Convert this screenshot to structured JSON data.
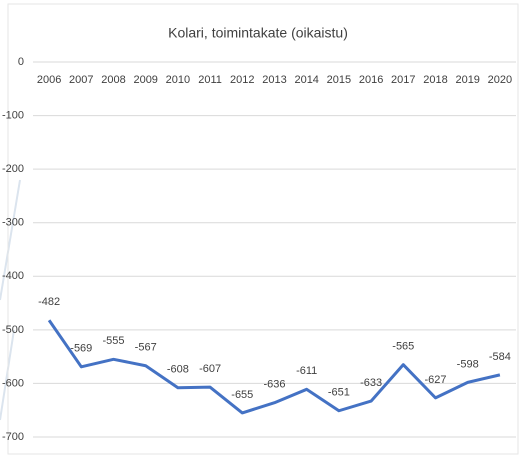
{
  "chart_data": {
    "type": "line",
    "title": "Kolari, toimintakate (oikaistu)",
    "categories": [
      "2006",
      "2007",
      "2008",
      "2009",
      "2010",
      "2011",
      "2012",
      "2013",
      "2014",
      "2015",
      "2016",
      "2017",
      "2018",
      "2019",
      "2020"
    ],
    "values": [
      -482,
      -569,
      -555,
      -567,
      -608,
      -607,
      -655,
      -636,
      -611,
      -651,
      -633,
      -565,
      -627,
      -598,
      -584
    ],
    "color": "#4472c4",
    "ylim": [
      -700,
      0
    ],
    "yticks": [
      0,
      -100,
      -200,
      -300,
      -400,
      -500,
      -600,
      -700
    ],
    "grid": true
  }
}
